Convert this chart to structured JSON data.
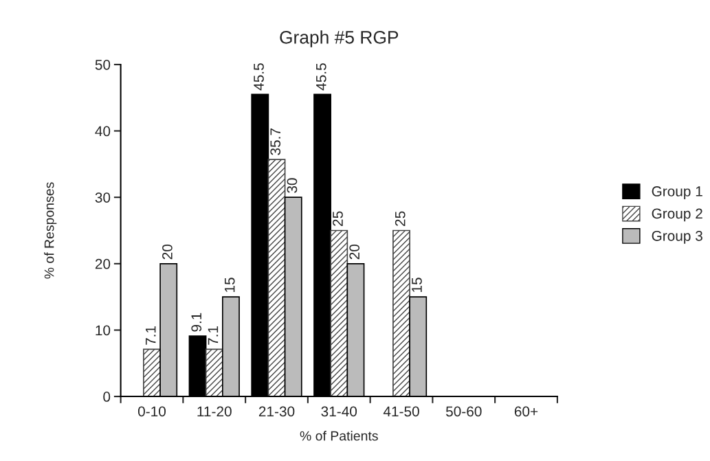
{
  "chart_data": {
    "type": "bar",
    "title": "Graph #5 RGP",
    "xlabel": "% of Patients",
    "ylabel": "% of Responses",
    "categories": [
      "0-10",
      "11-20",
      "21-30",
      "31-40",
      "41-50",
      "50-60",
      "60+"
    ],
    "series": [
      {
        "name": "Group 1",
        "color": "#000000",
        "values": [
          null,
          9.1,
          45.5,
          45.5,
          null,
          null,
          null
        ]
      },
      {
        "name": "Group 2",
        "color": "#444444",
        "values": [
          7.1,
          7.1,
          35.7,
          25,
          25,
          null,
          null
        ]
      },
      {
        "name": "Group 3",
        "color": "#bbbbbb",
        "values": [
          20,
          15,
          30,
          20,
          15,
          null,
          null
        ]
      }
    ],
    "ylim": [
      0,
      50
    ],
    "yticks": [
      0,
      10,
      20,
      30,
      40,
      50
    ],
    "grid": false,
    "legend": "right",
    "data_labels": true
  }
}
